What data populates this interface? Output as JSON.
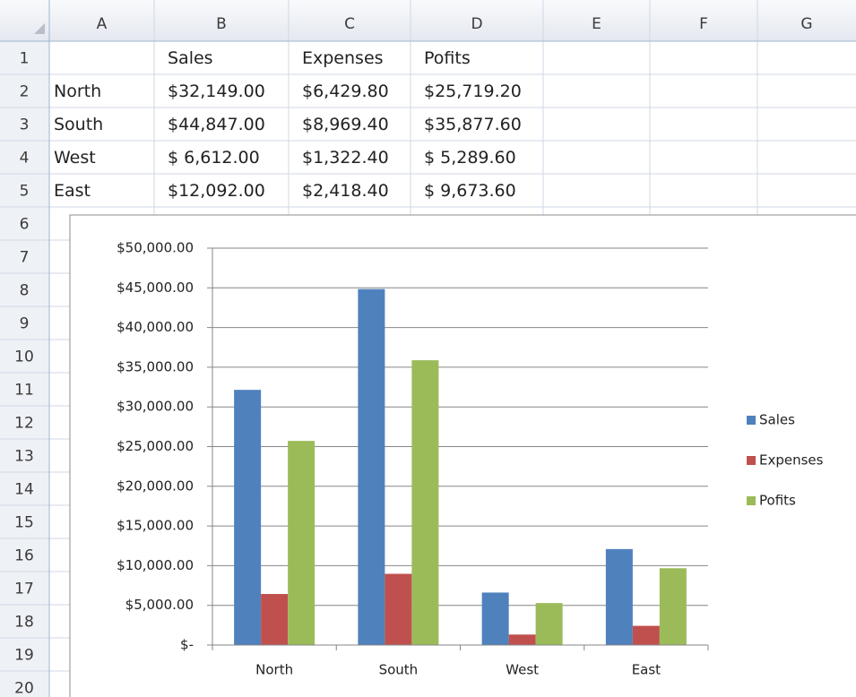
{
  "sheet": {
    "columns": [
      "A",
      "B",
      "C",
      "D",
      "E",
      "F",
      "G"
    ],
    "row_labels": [
      "1",
      "2",
      "3",
      "4",
      "5",
      "6",
      "7",
      "8",
      "9",
      "10",
      "11",
      "12",
      "13",
      "14",
      "15",
      "16",
      "17",
      "18",
      "19",
      "20"
    ],
    "rows": [
      [
        "",
        "Sales",
        "Expenses",
        "Pofits"
      ],
      [
        "North",
        "$32,149.00",
        "$6,429.80",
        "$25,719.20"
      ],
      [
        "South",
        "$44,847.00",
        "$8,969.40",
        "$35,877.60"
      ],
      [
        "West",
        "$ 6,612.00",
        "$1,322.40",
        "$ 5,289.60"
      ],
      [
        "East",
        "$12,092.00",
        "$2,418.40",
        "$ 9,673.60"
      ]
    ]
  },
  "chart_data": {
    "type": "bar",
    "categories": [
      "North",
      "South",
      "West",
      "East"
    ],
    "series": [
      {
        "name": "Sales",
        "color": "#4f81bd",
        "values": [
          32149,
          44847,
          6612,
          12092
        ]
      },
      {
        "name": "Expenses",
        "color": "#c0504d",
        "values": [
          6429.8,
          8969.4,
          1322.4,
          2418.4
        ]
      },
      {
        "name": "Pofits",
        "color": "#9bbb59",
        "values": [
          25719.2,
          35877.6,
          5289.6,
          9673.6
        ]
      }
    ],
    "ylim": [
      0,
      50000
    ],
    "yticks": [
      {
        "value": 0,
        "label": "$-"
      },
      {
        "value": 5000,
        "label": "$5,000.00"
      },
      {
        "value": 10000,
        "label": "$10,000.00"
      },
      {
        "value": 15000,
        "label": "$15,000.00"
      },
      {
        "value": 20000,
        "label": "$20,000.00"
      },
      {
        "value": 25000,
        "label": "$25,000.00"
      },
      {
        "value": 30000,
        "label": "$30,000.00"
      },
      {
        "value": 35000,
        "label": "$35,000.00"
      },
      {
        "value": 40000,
        "label": "$40,000.00"
      },
      {
        "value": 45000,
        "label": "$45,000.00"
      },
      {
        "value": 50000,
        "label": "$50,000.00"
      }
    ],
    "grid": true,
    "legend": "right"
  }
}
